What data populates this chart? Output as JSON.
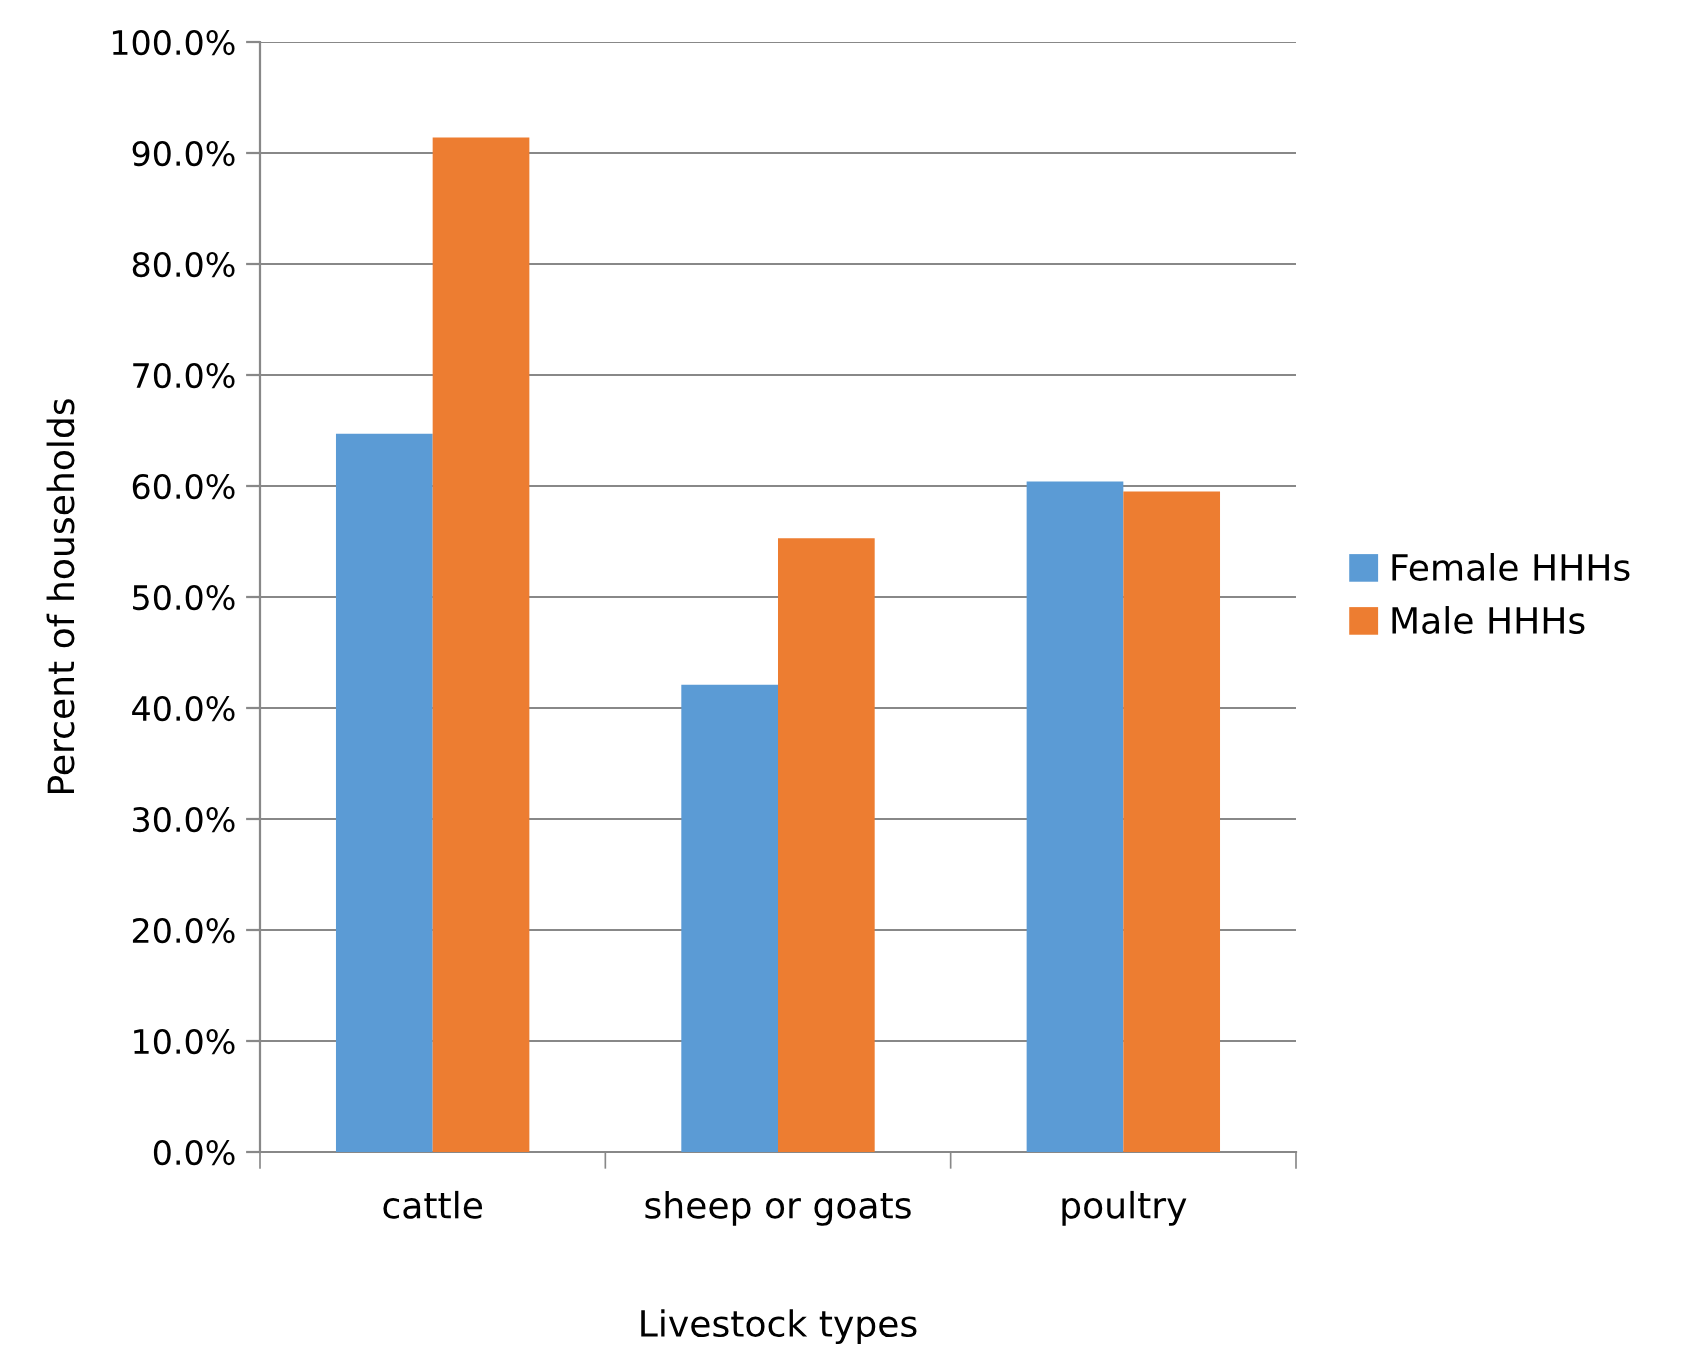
{
  "chart_data": {
    "type": "bar",
    "xlabel": "Livestock types",
    "ylabel": "Percent of households",
    "categories": [
      "cattle",
      "sheep or goats",
      "poultry"
    ],
    "series": [
      {
        "name": "Female HHHs",
        "color": "#5b9bd5",
        "values": [
          64.7,
          42.1,
          60.4
        ]
      },
      {
        "name": "Male HHHs",
        "color": "#ed7d31",
        "values": [
          91.4,
          55.3,
          59.5
        ]
      }
    ],
    "ylim": [
      0,
      100
    ],
    "yticks": [
      {
        "value": 0,
        "label": "0.0%"
      },
      {
        "value": 10,
        "label": "10.0%"
      },
      {
        "value": 20,
        "label": "20.0%"
      },
      {
        "value": 30,
        "label": "30.0%"
      },
      {
        "value": 40,
        "label": "40.0%"
      },
      {
        "value": 50,
        "label": "50.0%"
      },
      {
        "value": 60,
        "label": "60.0%"
      },
      {
        "value": 70,
        "label": "70.0%"
      },
      {
        "value": 80,
        "label": "80.0%"
      },
      {
        "value": 90,
        "label": "90.0%"
      },
      {
        "value": 100,
        "label": "100.0%"
      }
    ],
    "grid": "y",
    "legend": "right"
  }
}
